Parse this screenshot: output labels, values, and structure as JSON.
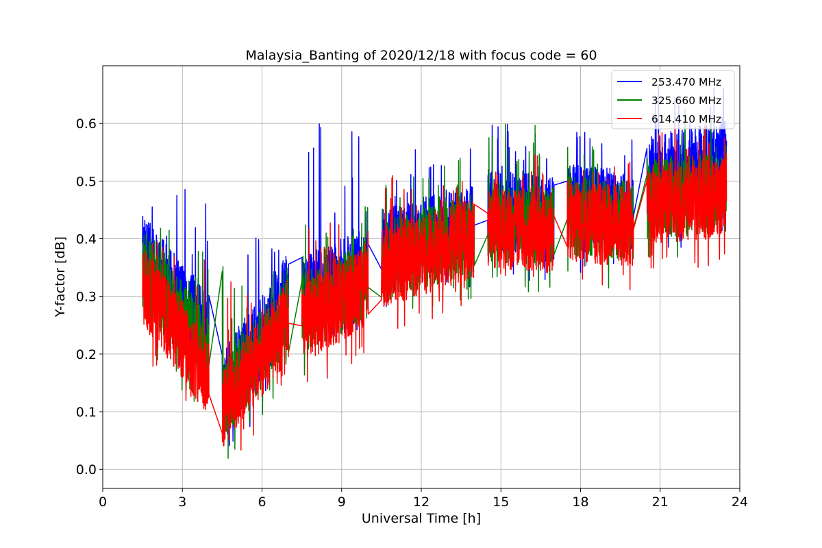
{
  "chart_data": {
    "type": "line",
    "title": "Malaysia_Banting of 2020/12/18 with focus code = 60",
    "xlabel": "Universal Time [h]",
    "ylabel": "Y-factor [dB]",
    "xlim": [
      0,
      24
    ],
    "ylim": [
      -0.033,
      0.7
    ],
    "xticks": [
      0,
      3,
      6,
      9,
      12,
      15,
      18,
      21,
      24
    ],
    "yticks": [
      0.0,
      0.1,
      0.2,
      0.3,
      0.4,
      0.5,
      0.6
    ],
    "xtick_labels": [
      "0",
      "3",
      "6",
      "9",
      "12",
      "15",
      "18",
      "21",
      "24"
    ],
    "ytick_labels": [
      "0.0",
      "0.1",
      "0.2",
      "0.3",
      "0.4",
      "0.5",
      "0.6"
    ],
    "grid": true,
    "legend_position": "top-right",
    "segments": [
      {
        "start": 1.5,
        "end": 4.0
      },
      {
        "start": 4.5,
        "end": 7.0
      },
      {
        "start": 7.5,
        "end": 10.0
      },
      {
        "start": 10.5,
        "end": 14.0
      },
      {
        "start": 14.5,
        "end": 17.0
      },
      {
        "start": 17.5,
        "end": 20.0
      },
      {
        "start": 20.5,
        "end": 23.5
      }
    ],
    "series": [
      {
        "name": "253.470 MHz",
        "color": "#0000ff",
        "segment_trends": [
          {
            "start_level": 0.37,
            "end_level": 0.24,
            "amplitude": 0.1,
            "max": 0.49
          },
          {
            "start_level": 0.13,
            "end_level": 0.3,
            "amplitude": 0.11,
            "max": 0.41
          },
          {
            "start_level": 0.3,
            "end_level": 0.35,
            "amplitude": 0.1,
            "max": 0.63
          },
          {
            "start_level": 0.38,
            "end_level": 0.43,
            "amplitude": 0.1,
            "max": 0.56
          },
          {
            "start_level": 0.45,
            "end_level": 0.44,
            "amplitude": 0.1,
            "max": 0.6
          },
          {
            "start_level": 0.46,
            "end_level": 0.45,
            "amplitude": 0.1,
            "max": 0.59
          },
          {
            "start_level": 0.5,
            "end_level": 0.53,
            "amplitude": 0.11,
            "max": 0.67
          }
        ]
      },
      {
        "name": "325.660 MHz",
        "color": "#008000",
        "segment_trends": [
          {
            "start_level": 0.34,
            "end_level": 0.2,
            "amplitude": 0.1,
            "max": 0.42
          },
          {
            "start_level": 0.12,
            "end_level": 0.27,
            "amplitude": 0.1,
            "max": 0.37
          },
          {
            "start_level": 0.27,
            "end_level": 0.33,
            "amplitude": 0.1,
            "max": 0.46
          },
          {
            "start_level": 0.36,
            "end_level": 0.41,
            "amplitude": 0.1,
            "max": 0.55
          },
          {
            "start_level": 0.43,
            "end_level": 0.42,
            "amplitude": 0.1,
            "max": 0.6
          },
          {
            "start_level": 0.44,
            "end_level": 0.43,
            "amplitude": 0.1,
            "max": 0.59
          },
          {
            "start_level": 0.47,
            "end_level": 0.48,
            "amplitude": 0.1,
            "max": 0.64
          }
        ]
      },
      {
        "name": "614.410 MHz",
        "color": "#ff0000",
        "segment_trends": [
          {
            "start_level": 0.32,
            "end_level": 0.16,
            "amplitude": 0.1,
            "max": 0.4
          },
          {
            "start_level": 0.1,
            "end_level": 0.26,
            "amplitude": 0.1,
            "max": 0.33
          },
          {
            "start_level": 0.25,
            "end_level": 0.32,
            "amplitude": 0.1,
            "max": 0.43
          },
          {
            "start_level": 0.35,
            "end_level": 0.4,
            "amplitude": 0.1,
            "max": 0.52
          },
          {
            "start_level": 0.42,
            "end_level": 0.41,
            "amplitude": 0.1,
            "max": 0.55
          },
          {
            "start_level": 0.43,
            "end_level": 0.42,
            "amplitude": 0.1,
            "max": 0.54
          },
          {
            "start_level": 0.46,
            "end_level": 0.47,
            "amplitude": 0.1,
            "max": 0.6
          }
        ]
      }
    ]
  }
}
